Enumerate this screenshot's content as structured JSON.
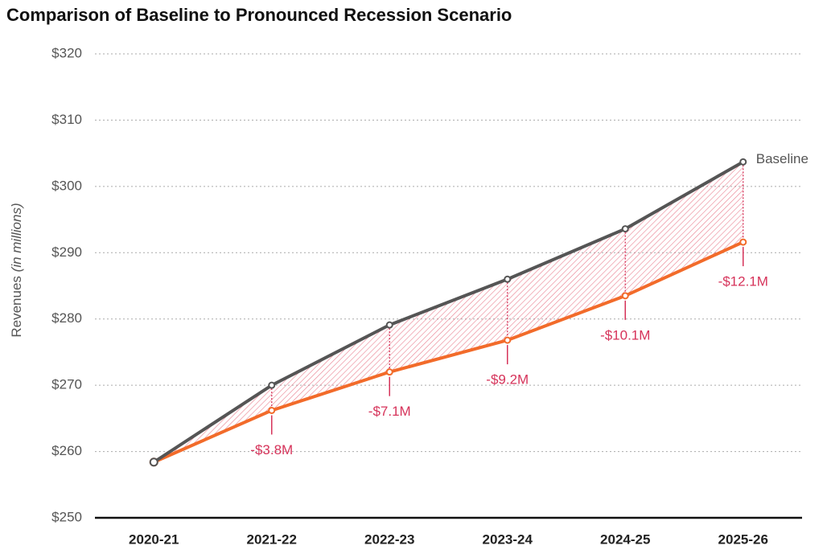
{
  "chart_data": {
    "type": "line",
    "title": "Comparison of Baseline to Pronounced Recession Scenario",
    "y_label": "Revenues",
    "y_label_note": "(in millions)",
    "categories": [
      "2020-21",
      "2021-22",
      "2022-23",
      "2023-24",
      "2024-25",
      "2025-26"
    ],
    "series": [
      {
        "name": "Baseline",
        "color": "#555555",
        "values": [
          258.4,
          270.0,
          279.1,
          286.0,
          293.6,
          303.7
        ]
      },
      {
        "color": "#f26b2a",
        "values": [
          258.4,
          266.2,
          272.0,
          276.8,
          283.5,
          291.6
        ]
      }
    ],
    "differences": {
      "color": "#d6335a",
      "values": [
        null,
        -3.8,
        -7.1,
        -9.2,
        -10.1,
        -12.1
      ],
      "value_labels": [
        null,
        "-$3.8M",
        "-$7.1M",
        "-$9.2M",
        "-$10.1M",
        "-$12.1M"
      ]
    },
    "ylim": [
      250,
      320
    ],
    "yticks": [
      {
        "value": 250,
        "label": "$250"
      },
      {
        "value": 260,
        "label": "$260"
      },
      {
        "value": 270,
        "label": "$270"
      },
      {
        "value": 280,
        "label": "$280"
      },
      {
        "value": 290,
        "label": "$290"
      },
      {
        "value": 300,
        "label": "$300"
      },
      {
        "value": 310,
        "label": "$310"
      },
      {
        "value": 320,
        "label": "$320"
      }
    ],
    "grid": true
  }
}
